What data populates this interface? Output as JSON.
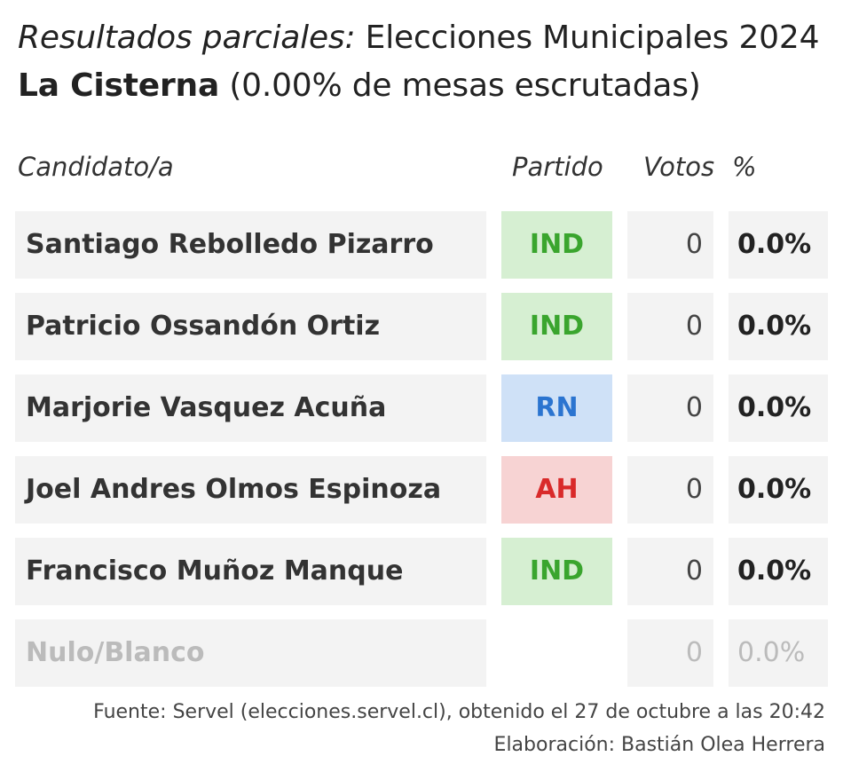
{
  "header": {
    "title_prefix": "Resultados parciales:",
    "title_main": "Elecciones Municipales 2024",
    "comuna": "La Cisterna",
    "scrutiny": "(0.00% de mesas escrutadas)"
  },
  "columns": {
    "candidate": "Candidato/a",
    "party": "Partido",
    "votes": "Votos",
    "pct": "%"
  },
  "rows": [
    {
      "name": "Santiago Rebolledo Pizarro",
      "party": "IND",
      "votes": "0",
      "pct": "0.0%"
    },
    {
      "name": "Patricio Ossandón Ortiz",
      "party": "IND",
      "votes": "0",
      "pct": "0.0%"
    },
    {
      "name": "Marjorie Vasquez Acuña",
      "party": "RN",
      "votes": "0",
      "pct": "0.0%"
    },
    {
      "name": "Joel Andres Olmos Espinoza",
      "party": "AH",
      "votes": "0",
      "pct": "0.0%"
    },
    {
      "name": "Francisco Muñoz Manque",
      "party": "IND",
      "votes": "0",
      "pct": "0.0%"
    },
    {
      "name": "Nulo/Blanco",
      "party": "",
      "votes": "0",
      "pct": "0.0%"
    }
  ],
  "party_colors": {
    "IND": {
      "bg": "#d6efd2",
      "fg": "#3aa52e"
    },
    "RN": {
      "bg": "#cfe1f7",
      "fg": "#2b74d0"
    },
    "AH": {
      "bg": "#f7d3d3",
      "fg": "#d92a2a"
    }
  },
  "footer": {
    "source": "Fuente: Servel (elecciones.servel.cl), obtenido el 27 de octubre a las 20:42",
    "credit": "Elaboración: Bastián Olea Herrera"
  }
}
